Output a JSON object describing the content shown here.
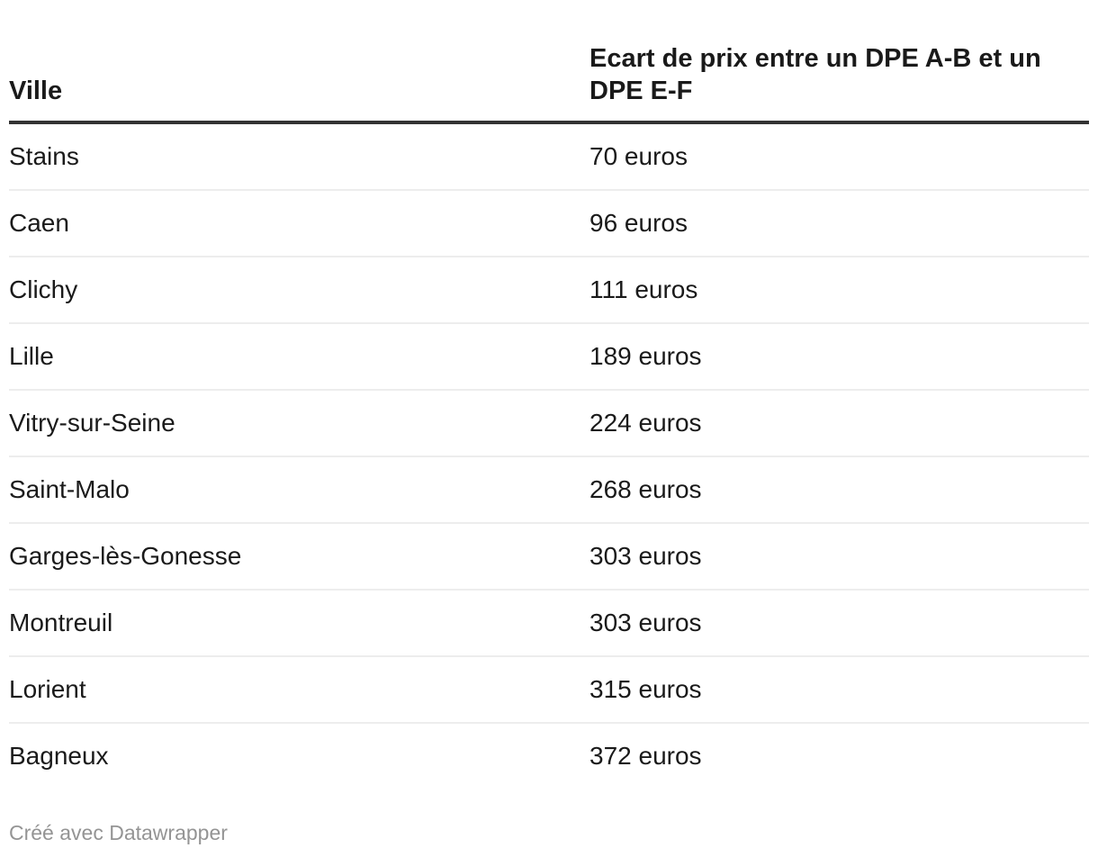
{
  "chart_data": {
    "type": "table",
    "columns": [
      "Ville",
      "Ecart de prix entre un DPE A-B et un DPE E-F"
    ],
    "unit": "euros",
    "rows": [
      {
        "ville": "Stains",
        "ecart_label": "70 euros",
        "ecart_value": 70
      },
      {
        "ville": "Caen",
        "ecart_label": "96 euros",
        "ecart_value": 96
      },
      {
        "ville": "Clichy",
        "ecart_label": "111 euros",
        "ecart_value": 111
      },
      {
        "ville": "Lille",
        "ecart_label": "189 euros",
        "ecart_value": 189
      },
      {
        "ville": "Vitry-sur-Seine",
        "ecart_label": "224 euros",
        "ecart_value": 224
      },
      {
        "ville": "Saint-Malo",
        "ecart_label": "268 euros",
        "ecart_value": 268
      },
      {
        "ville": "Garges-lès-Gonesse",
        "ecart_label": "303 euros",
        "ecart_value": 303
      },
      {
        "ville": "Montreuil",
        "ecart_label": "303 euros",
        "ecart_value": 303
      },
      {
        "ville": "Lorient",
        "ecart_label": "315 euros",
        "ecart_value": 315
      },
      {
        "ville": "Bagneux",
        "ecart_label": "372 euros",
        "ecart_value": 372
      }
    ]
  },
  "header": {
    "col1": "Ville",
    "col2_line1": "Ecart de prix entre un DPE A-B et un",
    "col2_line2": "DPE E-F"
  },
  "footer": {
    "credit": "Créé avec Datawrapper"
  },
  "colors": {
    "background": "#ffffff",
    "text": "#1a1a1a",
    "header_border": "#333333",
    "row_border": "#ededed",
    "footer_text": "#949494"
  }
}
